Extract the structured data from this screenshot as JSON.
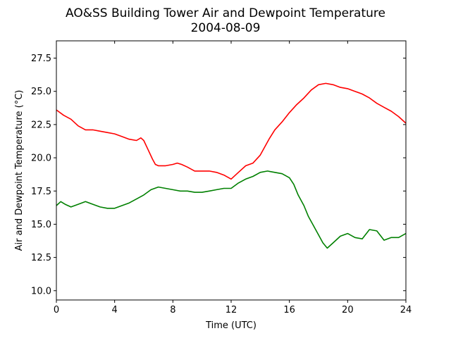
{
  "chart_data": {
    "type": "line",
    "title": "AO&SS Building Tower Air and Dewpoint Temperature",
    "subtitle": "2004-08-09",
    "xlabel": "Time (UTC)",
    "ylabel": "Air and Dewpoint Temperature (°C)",
    "xlim": [
      0,
      24
    ],
    "ylim": [
      9.3,
      28.8
    ],
    "xticks": [
      0,
      4,
      8,
      12,
      16,
      20,
      24
    ],
    "xtick_labels": [
      "0",
      "4",
      "8",
      "12",
      "16",
      "20",
      "24"
    ],
    "yticks": [
      10.0,
      12.5,
      15.0,
      17.5,
      20.0,
      22.5,
      25.0,
      27.5
    ],
    "ytick_labels": [
      "10.0",
      "12.5",
      "15.0",
      "17.5",
      "20.0",
      "22.5",
      "25.0",
      "27.5"
    ],
    "grid": false,
    "series": [
      {
        "color": "#ff0000",
        "x": [
          0,
          0.5,
          1,
          1.5,
          2,
          2.5,
          3,
          3.5,
          4,
          4.5,
          5,
          5.5,
          5.8,
          6,
          6.3,
          6.6,
          6.8,
          7,
          7.5,
          8,
          8.3,
          8.6,
          9,
          9.5,
          10,
          10.5,
          11,
          11.5,
          12,
          12.5,
          13,
          13.5,
          14,
          14.3,
          14.6,
          15,
          15.5,
          16,
          16.5,
          17,
          17.5,
          18,
          18.5,
          19,
          19.5,
          20,
          20.5,
          21,
          21.5,
          22,
          22.5,
          23,
          23.5,
          24
        ],
        "y": [
          23.6,
          23.2,
          22.9,
          22.4,
          22.1,
          22.1,
          22.0,
          21.9,
          21.8,
          21.6,
          21.4,
          21.3,
          21.5,
          21.3,
          20.6,
          19.9,
          19.5,
          19.4,
          19.4,
          19.5,
          19.6,
          19.5,
          19.3,
          19.0,
          19.0,
          19.0,
          18.9,
          18.7,
          18.4,
          18.9,
          19.4,
          19.6,
          20.2,
          20.8,
          21.4,
          22.1,
          22.7,
          23.4,
          24.0,
          24.5,
          25.1,
          25.5,
          25.6,
          25.5,
          25.3,
          25.2,
          25.0,
          24.8,
          24.5,
          24.1,
          23.8,
          23.5,
          23.1,
          22.6
        ]
      },
      {
        "color": "#008000",
        "x": [
          0,
          0.3,
          0.6,
          1,
          1.5,
          2,
          2.5,
          3,
          3.5,
          4,
          4.5,
          5,
          5.5,
          6,
          6.5,
          7,
          7.5,
          8,
          8.5,
          9,
          9.5,
          10,
          10.5,
          11,
          11.5,
          12,
          12.5,
          13,
          13.5,
          14,
          14.5,
          15,
          15.5,
          16,
          16.3,
          16.6,
          17,
          17.3,
          17.6,
          18,
          18.3,
          18.6,
          19,
          19.5,
          20,
          20.5,
          21,
          21.5,
          22,
          22.5,
          23,
          23.5,
          24
        ],
        "y": [
          16.4,
          16.7,
          16.5,
          16.3,
          16.5,
          16.7,
          16.5,
          16.3,
          16.2,
          16.2,
          16.4,
          16.6,
          16.9,
          17.2,
          17.6,
          17.8,
          17.7,
          17.6,
          17.5,
          17.5,
          17.4,
          17.4,
          17.5,
          17.6,
          17.7,
          17.7,
          18.1,
          18.4,
          18.6,
          18.9,
          19.0,
          18.9,
          18.8,
          18.5,
          18.0,
          17.2,
          16.4,
          15.6,
          15.0,
          14.2,
          13.6,
          13.2,
          13.6,
          14.1,
          14.3,
          14.0,
          13.9,
          14.6,
          14.5,
          13.8,
          14.0,
          14.0,
          14.3
        ]
      }
    ]
  }
}
